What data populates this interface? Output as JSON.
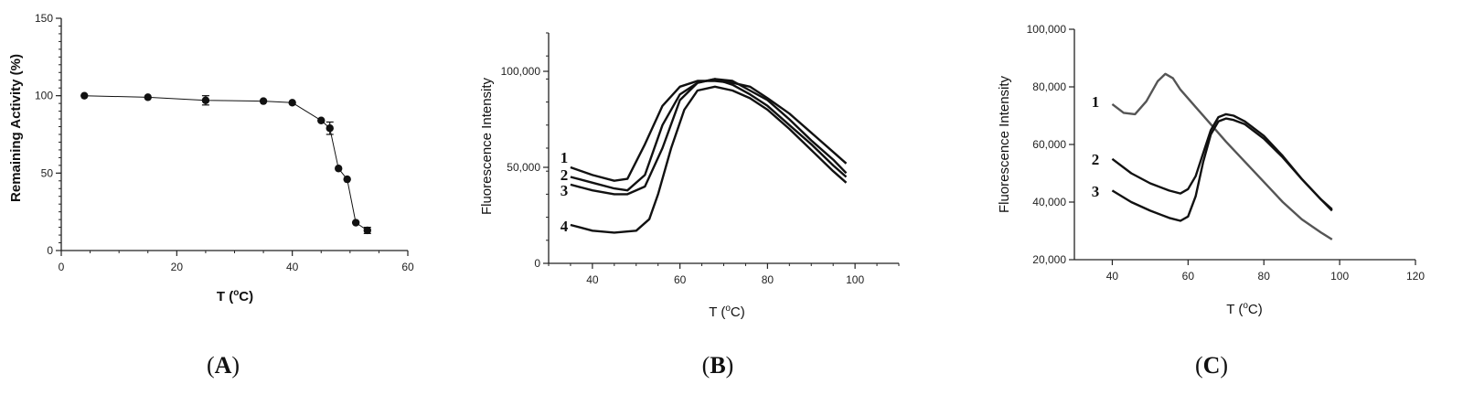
{
  "chart_data": [
    {
      "type": "line",
      "panel": "A",
      "caption": "(A)",
      "ylabel": "Remaining Activity (%)",
      "xlabel": "T (oC)",
      "xlim": [
        0,
        60
      ],
      "ylim": [
        0,
        150
      ],
      "xticks": [
        0,
        20,
        40,
        60
      ],
      "yticks": [
        0,
        50,
        100,
        150
      ],
      "series": [
        {
          "x": [
            4,
            15,
            25,
            35,
            40,
            45,
            46.5,
            48,
            49.5,
            51,
            53
          ],
          "y": [
            100,
            99,
            97,
            96.5,
            95.5,
            84,
            79,
            53,
            46,
            18,
            13
          ],
          "error": [
            0,
            0,
            3,
            0,
            0,
            0,
            4,
            0,
            0,
            0,
            2
          ]
        }
      ]
    },
    {
      "type": "line",
      "panel": "B",
      "caption": "(B)",
      "ylabel": "Fluorescence Intensity",
      "xlabel": "T (oC)",
      "xlim": [
        30,
        110
      ],
      "ylim": [
        0,
        120000
      ],
      "xticks": [
        40,
        60,
        80,
        100
      ],
      "xtick_labels": [
        "40",
        "60",
        "80",
        "100"
      ],
      "yticks": [
        0,
        50000,
        100000
      ],
      "ytick_labels": [
        "0",
        "50,000",
        "100,000"
      ],
      "series": [
        {
          "name": "1",
          "x": [
            35,
            40,
            45,
            48,
            52,
            56,
            60,
            64,
            68,
            72,
            76,
            80,
            85,
            90,
            95,
            98
          ],
          "y": [
            50000,
            46000,
            43000,
            44000,
            62000,
            82000,
            92000,
            95000,
            95000,
            94000,
            92000,
            86000,
            78000,
            68000,
            58000,
            52000
          ]
        },
        {
          "name": "2",
          "x": [
            35,
            40,
            45,
            48,
            52,
            56,
            60,
            64,
            68,
            72,
            76,
            80,
            85,
            90,
            95,
            98
          ],
          "y": [
            45000,
            42000,
            39000,
            38000,
            46000,
            72000,
            88000,
            94000,
            96000,
            95000,
            90000,
            85000,
            75000,
            64000,
            54000,
            47000
          ]
        },
        {
          "name": "3",
          "x": [
            35,
            40,
            45,
            48,
            52,
            56,
            60,
            64,
            68,
            72,
            76,
            80,
            85,
            90,
            95,
            98
          ],
          "y": [
            41000,
            38000,
            36000,
            36000,
            40000,
            60000,
            85000,
            94000,
            96000,
            93000,
            88000,
            82000,
            72000,
            62000,
            51000,
            45000
          ]
        },
        {
          "name": "4",
          "x": [
            35,
            40,
            45,
            50,
            53,
            55,
            58,
            61,
            64,
            68,
            72,
            76,
            80,
            85,
            90,
            95,
            98
          ],
          "y": [
            20000,
            17000,
            16000,
            17000,
            23000,
            36000,
            60000,
            80000,
            90000,
            92000,
            90000,
            86000,
            80000,
            70000,
            59000,
            48000,
            42000
          ]
        }
      ]
    },
    {
      "type": "line",
      "panel": "C",
      "caption": "(C)",
      "ylabel": "Fluorescence Intensity",
      "xlabel": "T (oC)",
      "xlim": [
        30,
        120
      ],
      "ylim": [
        20000,
        100000
      ],
      "xticks": [
        40,
        60,
        80,
        100,
        120
      ],
      "xtick_labels": [
        "40",
        "60",
        "80",
        "100",
        "120"
      ],
      "yticks": [
        20000,
        40000,
        60000,
        80000,
        100000
      ],
      "ytick_labels": [
        "20,000",
        "40,000",
        "60,000",
        "80,000",
        "100,000"
      ],
      "series": [
        {
          "name": "1",
          "x": [
            40,
            43,
            46,
            49,
            52,
            54,
            56,
            58,
            62,
            66,
            70,
            75,
            80,
            85,
            90,
            95,
            98
          ],
          "y": [
            74000,
            71000,
            70500,
            75000,
            82000,
            84500,
            83000,
            79000,
            73000,
            67000,
            61000,
            54000,
            47000,
            40000,
            34000,
            29500,
            27000
          ]
        },
        {
          "name": "2",
          "x": [
            40,
            45,
            50,
            55,
            58,
            60,
            62,
            64,
            66,
            68,
            70,
            72,
            75,
            80,
            85,
            90,
            95,
            98
          ],
          "y": [
            55000,
            50000,
            46500,
            44000,
            43000,
            44500,
            49000,
            57000,
            65000,
            69500,
            70500,
            70000,
            68000,
            63000,
            56000,
            48000,
            41000,
            37000
          ]
        },
        {
          "name": "3",
          "x": [
            40,
            45,
            50,
            55,
            58,
            60,
            62,
            64,
            66,
            68,
            70,
            72,
            75,
            80,
            85,
            90,
            95,
            98
          ],
          "y": [
            44000,
            40000,
            37000,
            34500,
            33500,
            35000,
            42000,
            54000,
            63500,
            68000,
            69000,
            68500,
            67000,
            62000,
            55500,
            48000,
            41000,
            37500
          ]
        }
      ]
    }
  ]
}
